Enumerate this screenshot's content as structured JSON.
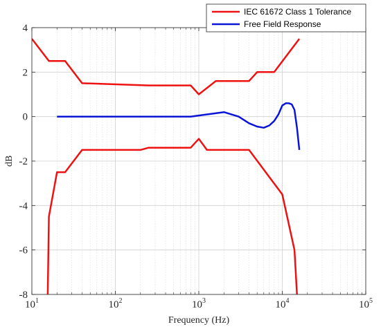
{
  "chart_data": {
    "type": "line",
    "xlabel": "Frequency (Hz)",
    "ylabel": "dB",
    "xscale": "log",
    "xlim": [
      10,
      100000
    ],
    "ylim": [
      -8,
      4
    ],
    "grid": true,
    "legend_position": "top-right",
    "x_ticks": [
      {
        "base": "10",
        "exp": "1"
      },
      {
        "base": "10",
        "exp": "2"
      },
      {
        "base": "10",
        "exp": "3"
      },
      {
        "base": "10",
        "exp": "4"
      },
      {
        "base": "10",
        "exp": "5"
      }
    ],
    "y_ticks": [
      "-8",
      "-6",
      "-4",
      "-2",
      "0",
      "2",
      "4"
    ],
    "legend": [
      "IEC 61672 Class 1 Tolerance",
      "Free Field Response"
    ],
    "series": [
      {
        "name": "IEC 61672 Class 1 Tolerance",
        "color": "#ee1111",
        "segments": [
          {
            "x": [
              10,
              16,
              20,
              25,
              40,
              250,
              800,
              1000,
              1600,
              4000,
              5000,
              8000,
              16000
            ],
            "y": [
              3.5,
              2.5,
              2.5,
              2.5,
              1.5,
              1.4,
              1.4,
              1.0,
              1.6,
              1.6,
              2.0,
              2.0,
              3.5
            ]
          },
          {
            "x": [
              15.5,
              16,
              20,
              25,
              40,
              200,
              250,
              800,
              1000,
              1250,
              4000,
              10000,
              14000,
              15000,
              15500
            ],
            "y": [
              -8,
              -4.5,
              -2.5,
              -2.5,
              -1.5,
              -1.5,
              -1.4,
              -1.4,
              -1.0,
              -1.5,
              -1.5,
              -3.5,
              -6.0,
              -8.0,
              -8.2
            ]
          }
        ]
      },
      {
        "name": "Free Field Response",
        "color": "#0a14d6",
        "x": [
          20,
          100,
          500,
          800,
          1000,
          2000,
          3000,
          4000,
          5000,
          6000,
          7000,
          8000,
          9000,
          10000,
          10500,
          11000,
          12000,
          13000,
          14000,
          15000,
          16000
        ],
        "y": [
          0,
          0,
          0,
          0,
          0.05,
          0.2,
          0.0,
          -0.3,
          -0.45,
          -0.5,
          -0.4,
          -0.2,
          0.1,
          0.5,
          0.55,
          0.6,
          0.6,
          0.55,
          0.3,
          -0.5,
          -1.5
        ]
      }
    ]
  }
}
